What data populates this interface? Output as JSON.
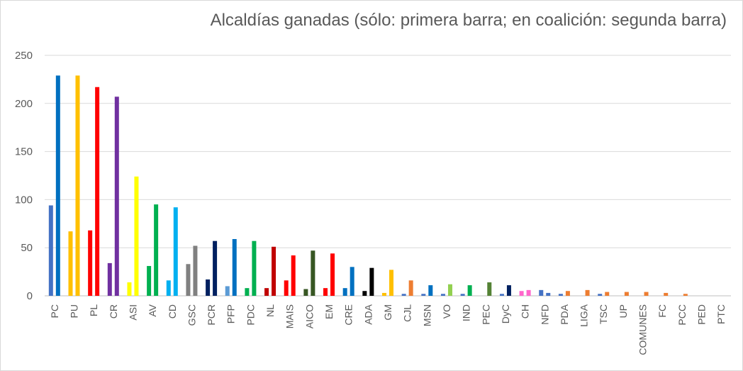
{
  "chart_data": {
    "type": "bar",
    "title": "Alcaldías ganadas (sólo: primera barra; en coalición: segunda barra)",
    "xlabel": "",
    "ylabel": "",
    "ylim": [
      0,
      250
    ],
    "yticks": [
      0,
      50,
      100,
      150,
      200,
      250
    ],
    "grid": true,
    "legend": "none",
    "categories": [
      "PC",
      "PU",
      "PL",
      "CR",
      "ASI",
      "AV",
      "CD",
      "GSC",
      "PCR",
      "PFP",
      "PDC",
      "NL",
      "MAIS",
      "AICO",
      "EM",
      "CRE",
      "ADA",
      "GM",
      "CJL",
      "MSN",
      "VO",
      "IND",
      "PEC",
      "DyC",
      "CH",
      "NFD",
      "PDA",
      "LIGA",
      "TSC",
      "UP",
      "COMUNES",
      "FC",
      "PCC",
      "PED",
      "PTC"
    ],
    "series": [
      {
        "values": [
          94,
          67,
          68,
          34,
          14,
          31,
          16,
          33,
          17,
          10,
          8,
          8,
          16,
          7,
          8,
          8,
          5,
          3,
          2,
          2,
          2,
          2,
          0,
          2,
          5,
          6,
          2,
          0,
          2,
          0,
          0,
          0,
          0,
          0,
          0
        ]
      },
      {
        "values": [
          229,
          229,
          217,
          207,
          124,
          95,
          92,
          52,
          57,
          59,
          57,
          51,
          42,
          47,
          44,
          30,
          29,
          27,
          16,
          11,
          12,
          11,
          14,
          11,
          6,
          3,
          5,
          6,
          4,
          4,
          4,
          3,
          2,
          0,
          0
        ]
      }
    ],
    "colors": {
      "first": [
        "#4472c4",
        "#ffc000",
        "#ff0000",
        "#7030a0",
        "#ffff00",
        "#00b050",
        "#00b0f0",
        "#808080",
        "#002060",
        "#5b9bd5",
        "#00b050",
        "#c00000",
        "#ff0000",
        "#375623",
        "#ff0000",
        "#0070c0",
        "#000000",
        "#ffc000",
        "#4472c4",
        "#4472c4",
        "#4472c4",
        "#4472c4",
        "#548235",
        "#4472c4",
        "#ff66cc",
        "#4472c4",
        "#4472c4",
        "#ed7d31",
        "#4472c4",
        "#ed7d31",
        "#ed7d31",
        "#ed7d31",
        "#ed7d31",
        "#ed7d31",
        "#ed7d31"
      ],
      "second": [
        "#0070c0",
        "#ffc000",
        "#ff0000",
        "#7030a0",
        "#ffff00",
        "#00b050",
        "#00b0f0",
        "#808080",
        "#002060",
        "#0070c0",
        "#00b050",
        "#c00000",
        "#ff0000",
        "#375623",
        "#ff0000",
        "#0070c0",
        "#000000",
        "#ffc000",
        "#ed7d31",
        "#0070c0",
        "#92d050",
        "#00b050",
        "#548235",
        "#002060",
        "#ff66cc",
        "#4472c4",
        "#ed7d31",
        "#ed7d31",
        "#ed7d31",
        "#ed7d31",
        "#ed7d31",
        "#ed7d31",
        "#ed7d31",
        "#ed7d31",
        "#ed7d31"
      ]
    }
  }
}
